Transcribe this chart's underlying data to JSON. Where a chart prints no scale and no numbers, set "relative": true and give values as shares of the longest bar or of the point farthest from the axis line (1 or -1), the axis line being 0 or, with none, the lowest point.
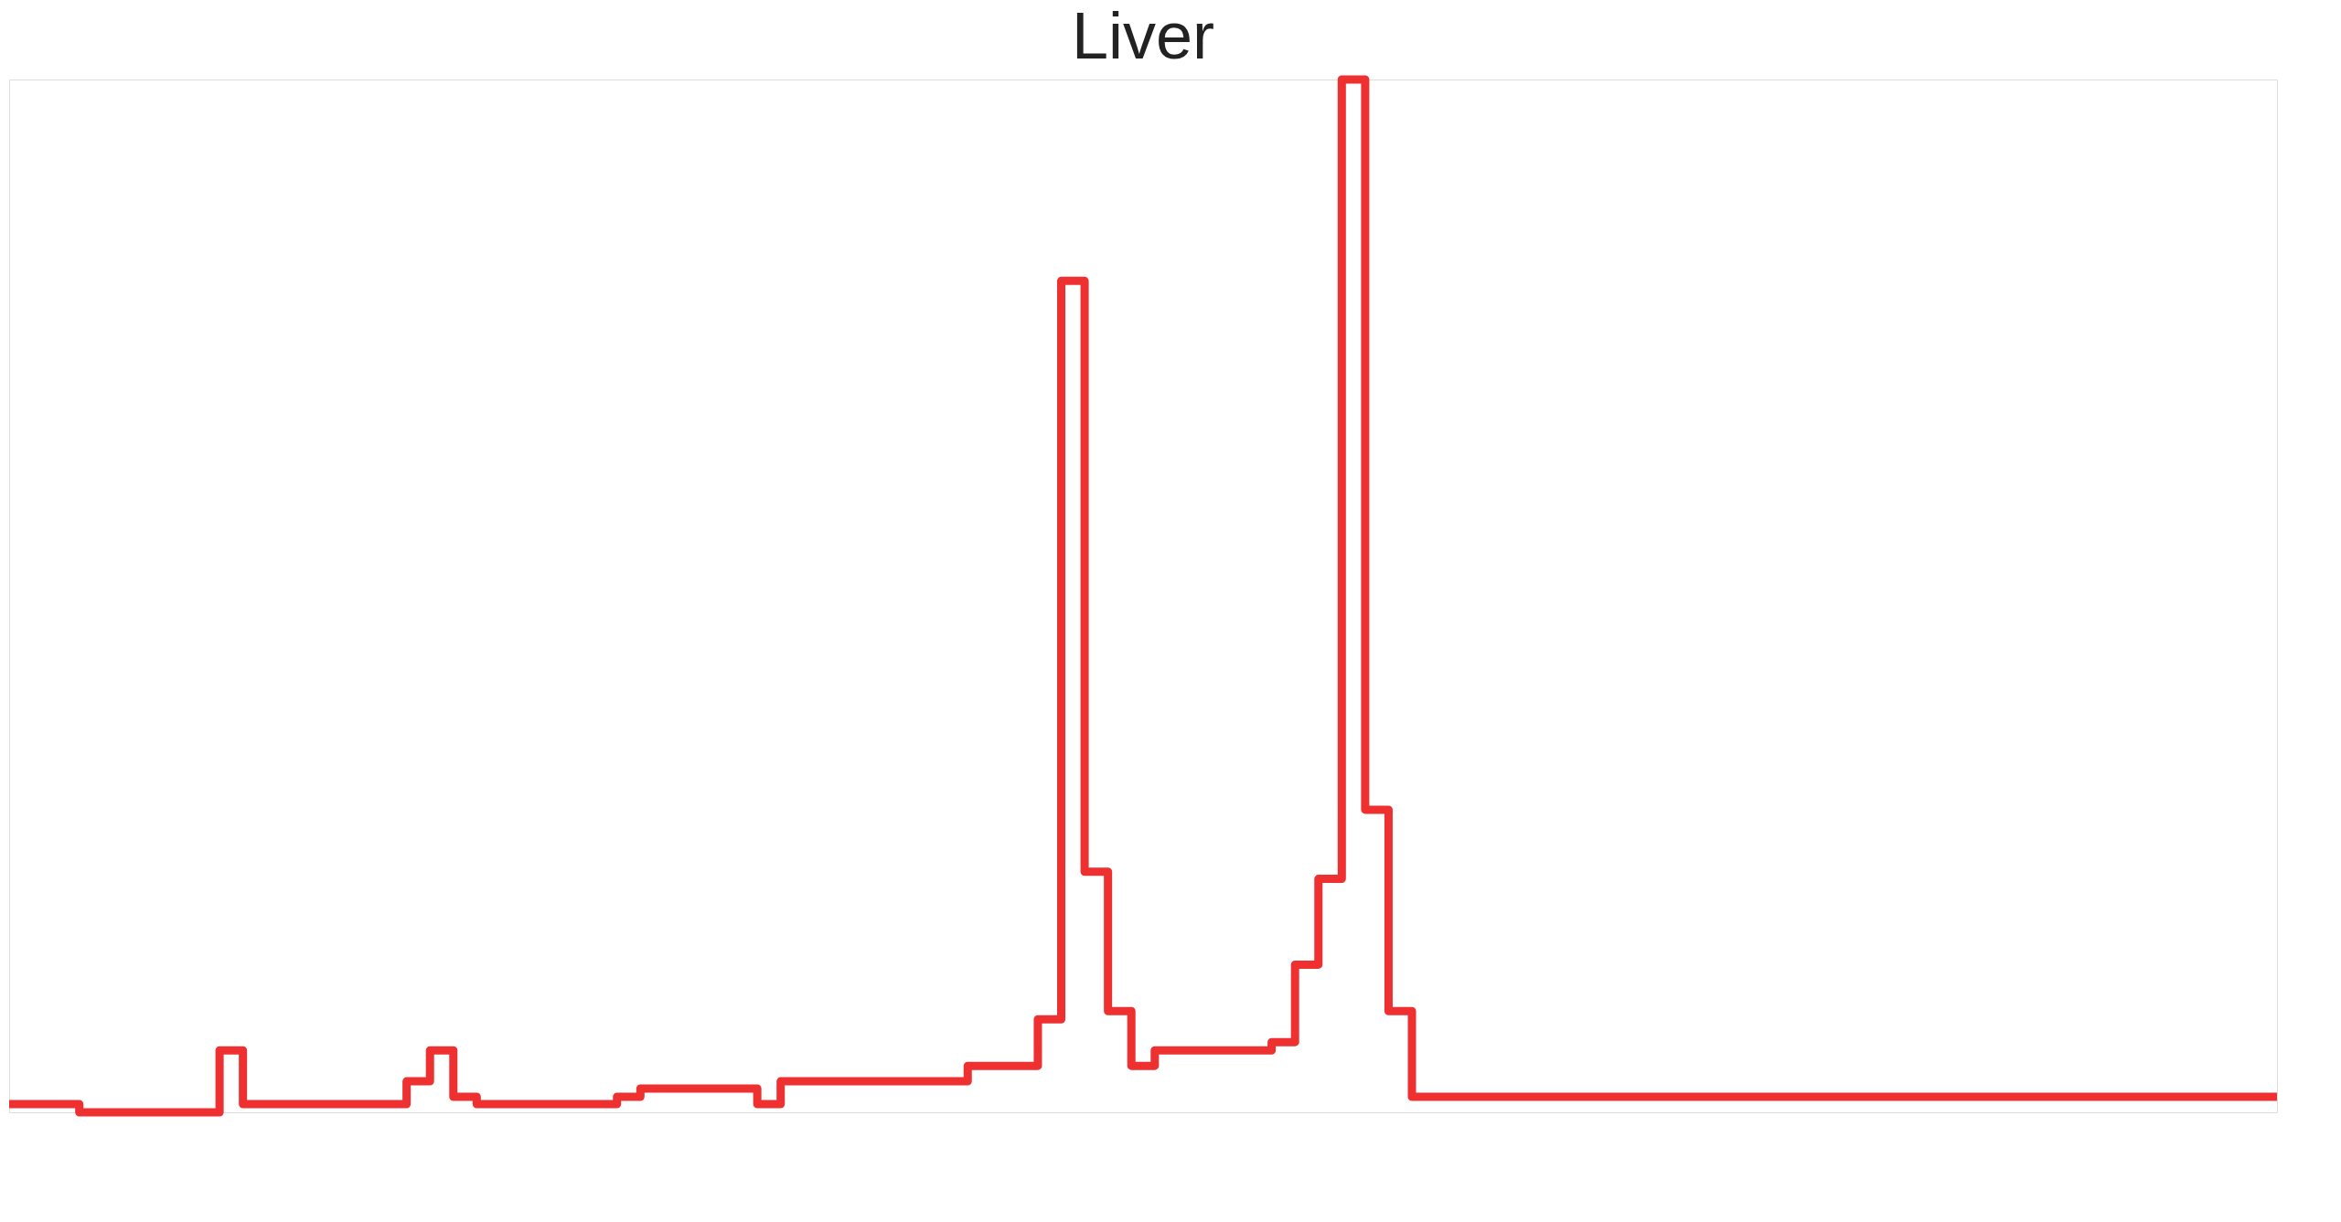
{
  "chart_data": {
    "type": "step",
    "title": "Liver",
    "relative": true,
    "categories": [
      null,
      null,
      null,
      null,
      null,
      null,
      null,
      null,
      null,
      null,
      null,
      null,
      null,
      null,
      null,
      null,
      null,
      null,
      null,
      null,
      null,
      null,
      null,
      null,
      null,
      null,
      null,
      null,
      null,
      null,
      null,
      null,
      null,
      null,
      null,
      null,
      null,
      null,
      null,
      null,
      null,
      null,
      null,
      null,
      null,
      null,
      null,
      null,
      null,
      null,
      null,
      null,
      null,
      null,
      null,
      null,
      null,
      null,
      null,
      null,
      null,
      null,
      null,
      null,
      null,
      null,
      null,
      null,
      null,
      null,
      null,
      null,
      null,
      null,
      null,
      null,
      null,
      null,
      null,
      null,
      null,
      null,
      null,
      null,
      null,
      null,
      null,
      null,
      null,
      null,
      null,
      null,
      null,
      null,
      null,
      null,
      null,
      null
    ],
    "series": [
      {
        "color": "#ee3030",
        "values": [
          0.008,
          0.008,
          0.008,
          0,
          0,
          0,
          0,
          0,
          0,
          0.06,
          0.008,
          0.008,
          0.008,
          0.008,
          0.008,
          0.008,
          0.008,
          0.03,
          0.06,
          0.015,
          0.008,
          0.008,
          0.008,
          0.008,
          0.008,
          0.008,
          0.015,
          0.023,
          0.023,
          0.023,
          0.023,
          0.023,
          0.008,
          0.03,
          0.03,
          0.03,
          0.03,
          0.03,
          0.03,
          0.03,
          0.03,
          0.045,
          0.045,
          0.045,
          0.09,
          0.805,
          0.233,
          0.098,
          0.045,
          0.06,
          0.06,
          0.06,
          0.06,
          0.06,
          0.068,
          0.143,
          0.226,
          1,
          0.293,
          0.098,
          0.015,
          0.015,
          0.015,
          0.015,
          0.015,
          0.015,
          0.015,
          0.015,
          0.015,
          0.015,
          0.015,
          0.015,
          0.015,
          0.015,
          0.015,
          0.015,
          0.015,
          0.015,
          0.015,
          0.015,
          0.015,
          0.015,
          0.015,
          0.015,
          0.015,
          0.015,
          0.015,
          0.015,
          0.015,
          0.015,
          0.015,
          0.015,
          0.015,
          0.015,
          0.015,
          0.015,
          0.015,
          0.015
        ]
      }
    ]
  }
}
